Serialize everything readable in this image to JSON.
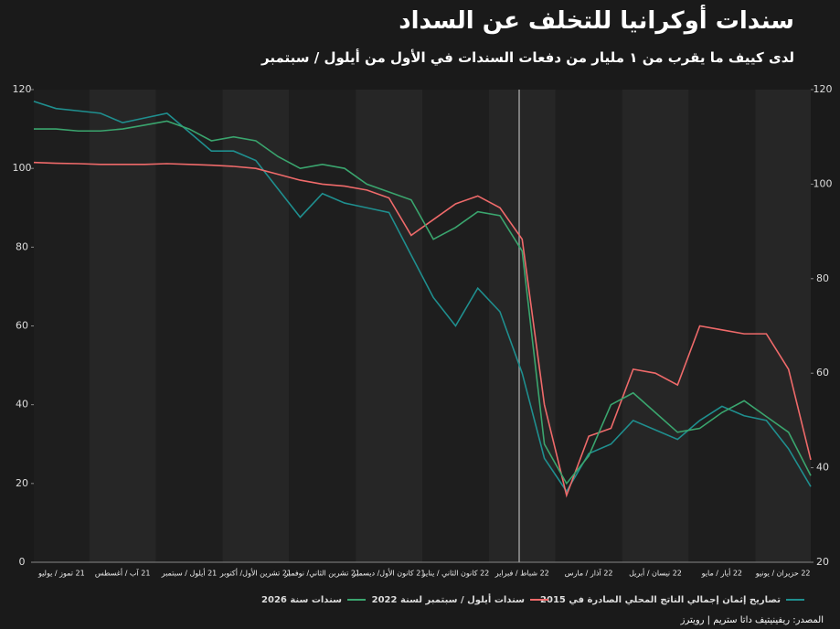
{
  "chart_data": {
    "type": "line",
    "title": "سندات أوكرانيا للتخلف عن السداد",
    "subtitle": "لدى كييف ما يقرب من ١ مليار من دفعات السندات في الأول من أيلول / سبتمبر",
    "source": "المصدر: ريفينيتيف داتا ستريم | رويترز",
    "categories": [
      "21 تموز / يوليو",
      null,
      null,
      "21 آب / أغسطس",
      null,
      null,
      "21 أيلول / سبتمبر",
      null,
      null,
      "21 تشرين الأول/ أكتوبر",
      null,
      null,
      "21 تشرين الثاني/ نوفمبر",
      null,
      null,
      "21 كانون الأول/ ديسمبر",
      null,
      null,
      "22 كانون الثاني / يناير",
      null,
      null,
      "22 شباط / فبراير",
      null,
      null,
      "22 آذار / مارس",
      null,
      null,
      "22 نيسان / أبريل",
      null,
      null,
      "22 أيار / مايو",
      null,
      null,
      "22 حزيران / يونيو",
      null,
      null
    ],
    "ylim": [
      0,
      120
    ],
    "yticks": [
      0,
      20,
      40,
      60,
      80,
      100,
      120
    ],
    "y2lim": [
      20,
      120
    ],
    "y2ticks": [
      20,
      40,
      60,
      80,
      100,
      120
    ],
    "series": [
      {
        "name": "تصاريح إثمان إجمالي الناتج المحلي الصادرة في 2015",
        "color": "#1f8f8f",
        "axis": "y2",
        "values": [
          117.5,
          116,
          115.5,
          115,
          113,
          114,
          115,
          111,
          107,
          107,
          105,
          99,
          93,
          98,
          96,
          95,
          94,
          85,
          76,
          70,
          78,
          73,
          60,
          42,
          35,
          43,
          45,
          50,
          48,
          46,
          50,
          53,
          51,
          50,
          44,
          36
        ]
      },
      {
        "name": "سندات أيلول / سبتمبر لسنة 2022",
        "color": "#ef6a6a",
        "values": [
          101.5,
          101.3,
          101.2,
          101,
          101,
          101,
          101.2,
          101,
          100.8,
          100.5,
          100,
          98.5,
          97,
          96,
          95.5,
          94.5,
          92.5,
          83,
          87,
          91,
          93,
          90,
          82,
          40,
          17,
          32,
          34,
          49,
          48,
          45,
          60,
          59,
          58,
          58,
          49,
          26
        ]
      },
      {
        "name": "سندات سنة 2026",
        "color": "#3aa56e",
        "values": [
          110,
          110,
          109.5,
          109.5,
          110,
          111,
          112,
          110,
          107,
          108,
          107,
          103,
          100,
          101,
          100,
          96,
          94,
          92,
          82,
          85,
          89,
          88,
          79,
          30,
          20,
          27,
          40,
          43,
          38,
          33,
          34,
          38,
          41,
          37,
          33,
          22
        ]
      }
    ]
  }
}
